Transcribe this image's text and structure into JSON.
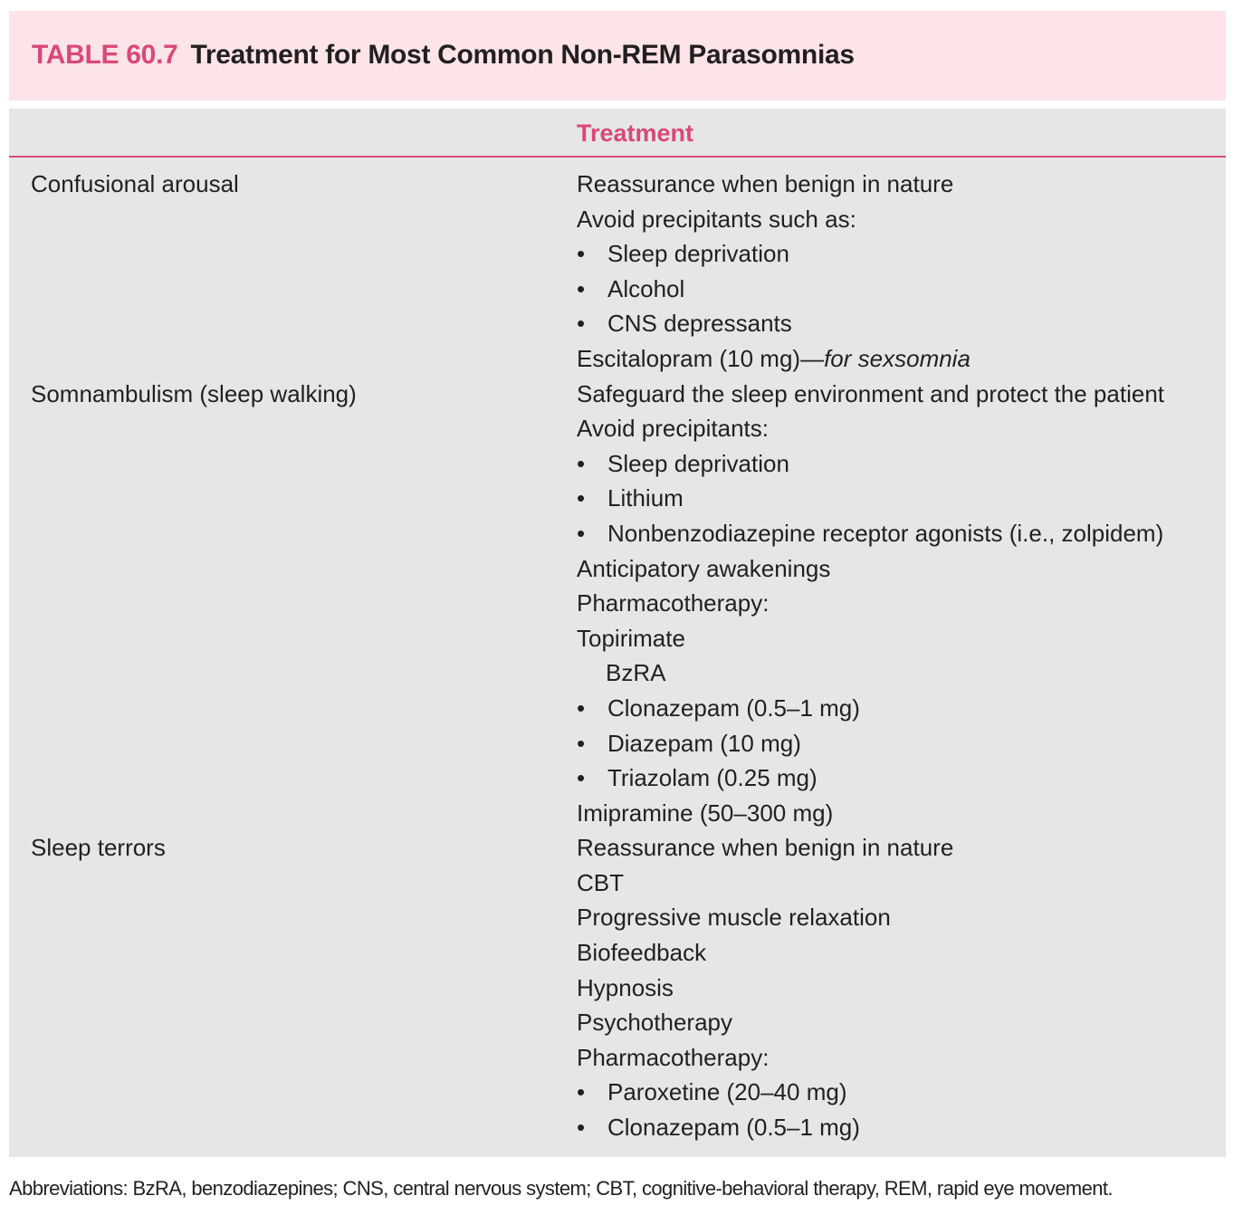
{
  "title": {
    "number": "TABLE 60.7",
    "text": "Treatment for Most Common Non-REM Parasomnias"
  },
  "colors": {
    "accent": "#d9487a",
    "title_bg": "#fce4e8",
    "table_bg": "#e6e6e6"
  },
  "table": {
    "header": {
      "col1": "",
      "col2": "Treatment"
    },
    "rows": [
      {
        "condition": "Confusional arousal",
        "lines": [
          {
            "type": "text",
            "text": "Reassurance when benign in nature"
          },
          {
            "type": "text",
            "text": "Avoid precipitants such as:"
          },
          {
            "type": "bullet",
            "text": "Sleep deprivation"
          },
          {
            "type": "bullet",
            "text": "Alcohol"
          },
          {
            "type": "bullet",
            "text": "CNS depressants"
          },
          {
            "type": "text",
            "text": "Escitalopram (10 mg)—",
            "italic": "for sexsomnia"
          }
        ]
      },
      {
        "condition": "Somnambulism (sleep walking)",
        "lines": [
          {
            "type": "text",
            "text": "Safeguard the sleep environment and protect the patient"
          },
          {
            "type": "text",
            "text": "Avoid precipitants:"
          },
          {
            "type": "bullet",
            "text": "Sleep deprivation"
          },
          {
            "type": "bullet",
            "text": "Lithium"
          },
          {
            "type": "bullet",
            "text": "Nonbenzodiazepine receptor agonists (i.e., zolpidem)"
          },
          {
            "type": "text",
            "text": "Anticipatory awakenings"
          },
          {
            "type": "text",
            "text": "Pharmacotherapy:"
          },
          {
            "type": "text",
            "text": "Topirimate"
          },
          {
            "type": "indent",
            "text": "BzRA"
          },
          {
            "type": "bullet",
            "text": "Clonazepam (0.5–1 mg)"
          },
          {
            "type": "bullet",
            "text": "Diazepam (10 mg)"
          },
          {
            "type": "bullet",
            "text": "Triazolam (0.25 mg)"
          },
          {
            "type": "text",
            "text": "Imipramine (50–300 mg)"
          }
        ]
      },
      {
        "condition": "Sleep terrors",
        "lines": [
          {
            "type": "text",
            "text": "Reassurance when benign in nature"
          },
          {
            "type": "text",
            "text": "CBT"
          },
          {
            "type": "text",
            "text": "Progressive muscle relaxation"
          },
          {
            "type": "text",
            "text": "Biofeedback"
          },
          {
            "type": "text",
            "text": "Hypnosis"
          },
          {
            "type": "text",
            "text": "Psychotherapy"
          },
          {
            "type": "text",
            "text": "Pharmacotherapy:"
          },
          {
            "type": "bullet",
            "text": "Paroxetine (20–40 mg)"
          },
          {
            "type": "bullet",
            "text": "Clonazepam (0.5–1 mg)"
          }
        ]
      }
    ]
  },
  "footnote": "Abbreviations: BzRA, benzodiazepines; CNS, central nervous system; CBT, cognitive-behavioral therapy, REM, rapid eye movement.",
  "bullet_glyph": "•"
}
